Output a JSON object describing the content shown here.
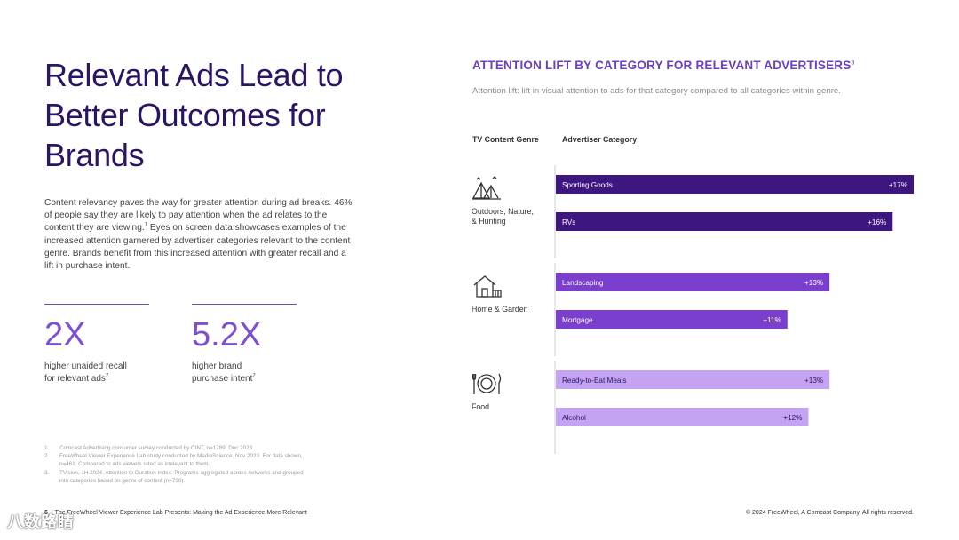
{
  "headline": "Relevant Ads Lead to Better Outcomes for Brands",
  "body": {
    "text": "Content relevancy paves the way for greater attention during ad breaks. 46% of people say they are likely to pay attention when the ad relates to the content they are viewing.",
    "sup": "1",
    "text2": " Eyes on screen data showcases examples of the increased attention garnered by advertiser categories relevant to the content genre. Brands benefit from this increased attention with greater recall and a lift in purchase intent."
  },
  "stats": [
    {
      "value": "2X",
      "caption_line1": "higher unaided recall",
      "caption_line2": "for relevant ads",
      "sup": "2"
    },
    {
      "value": "5.2X",
      "caption_line1": "higher brand",
      "caption_line2": "purchase intent",
      "sup": "2"
    }
  ],
  "footnotes": [
    {
      "n": "1.",
      "text": "Comcast Advertising consumer survey conducted by CINT, n=1789, Dec 2023."
    },
    {
      "n": "2.",
      "text": "FreeWheel Viewer Experience Lab study conducted by MediaScience, Nov 2023. For data shown, n=461. Compared to ads viewers rated as irrelevant to them."
    },
    {
      "n": "3.",
      "text": "TVision, 1H 2024. Attention to Duration Index. Programs aggregated across networks and grouped into categories based on genre of content (n=736)."
    }
  ],
  "footer": {
    "page": "6",
    "separator": "|",
    "left": "The FreeWheel Viewer Experience Lab Presents: Making the Ad Experience More Relevant",
    "right": "© 2024 FreeWheel, A Comcast Company. All rights reserved."
  },
  "watermark": "八数路睛",
  "chart_data": {
    "type": "bar",
    "orientation": "horizontal",
    "title": "ATTENTION LIFT BY CATEGORY FOR RELEVANT ADVERTISERS",
    "title_sup": "3",
    "subtitle": "Attention lift: lift in visual attention to ads for that category compared to all categories within genre.",
    "xlabel": "",
    "ylabel": "",
    "column_headers": {
      "genre": "TV Content Genre",
      "category": "Advertiser Category"
    },
    "unit": "%",
    "xlim": [
      0,
      17
    ],
    "groups": [
      {
        "genre": "Outdoors, Nature, & Hunting",
        "genre_lines": [
          "Outdoors, Nature,",
          "& Hunting"
        ],
        "icon": "camping-tents-icon",
        "color": "#3d1680",
        "bars": [
          {
            "category": "Sporting Goods",
            "value": 17,
            "label": "+17%"
          },
          {
            "category": "RVs",
            "value": 16,
            "label": "+16%"
          }
        ]
      },
      {
        "genre": "Home & Garden",
        "genre_lines": [
          "Home & Garden"
        ],
        "icon": "house-icon",
        "color": "#7b3fd0",
        "bars": [
          {
            "category": "Landscaping",
            "value": 13,
            "label": "+13%"
          },
          {
            "category": "Mortgage",
            "value": 11,
            "label": "+11%"
          }
        ]
      },
      {
        "genre": "Food",
        "genre_lines": [
          "Food"
        ],
        "icon": "plate-cutlery-icon",
        "color": "#c4a3f2",
        "bars": [
          {
            "category": "Ready-to-Eat Meals",
            "value": 13,
            "label": "+13%"
          },
          {
            "category": "Alcohol",
            "value": 12,
            "label": "+12%"
          }
        ]
      }
    ]
  }
}
